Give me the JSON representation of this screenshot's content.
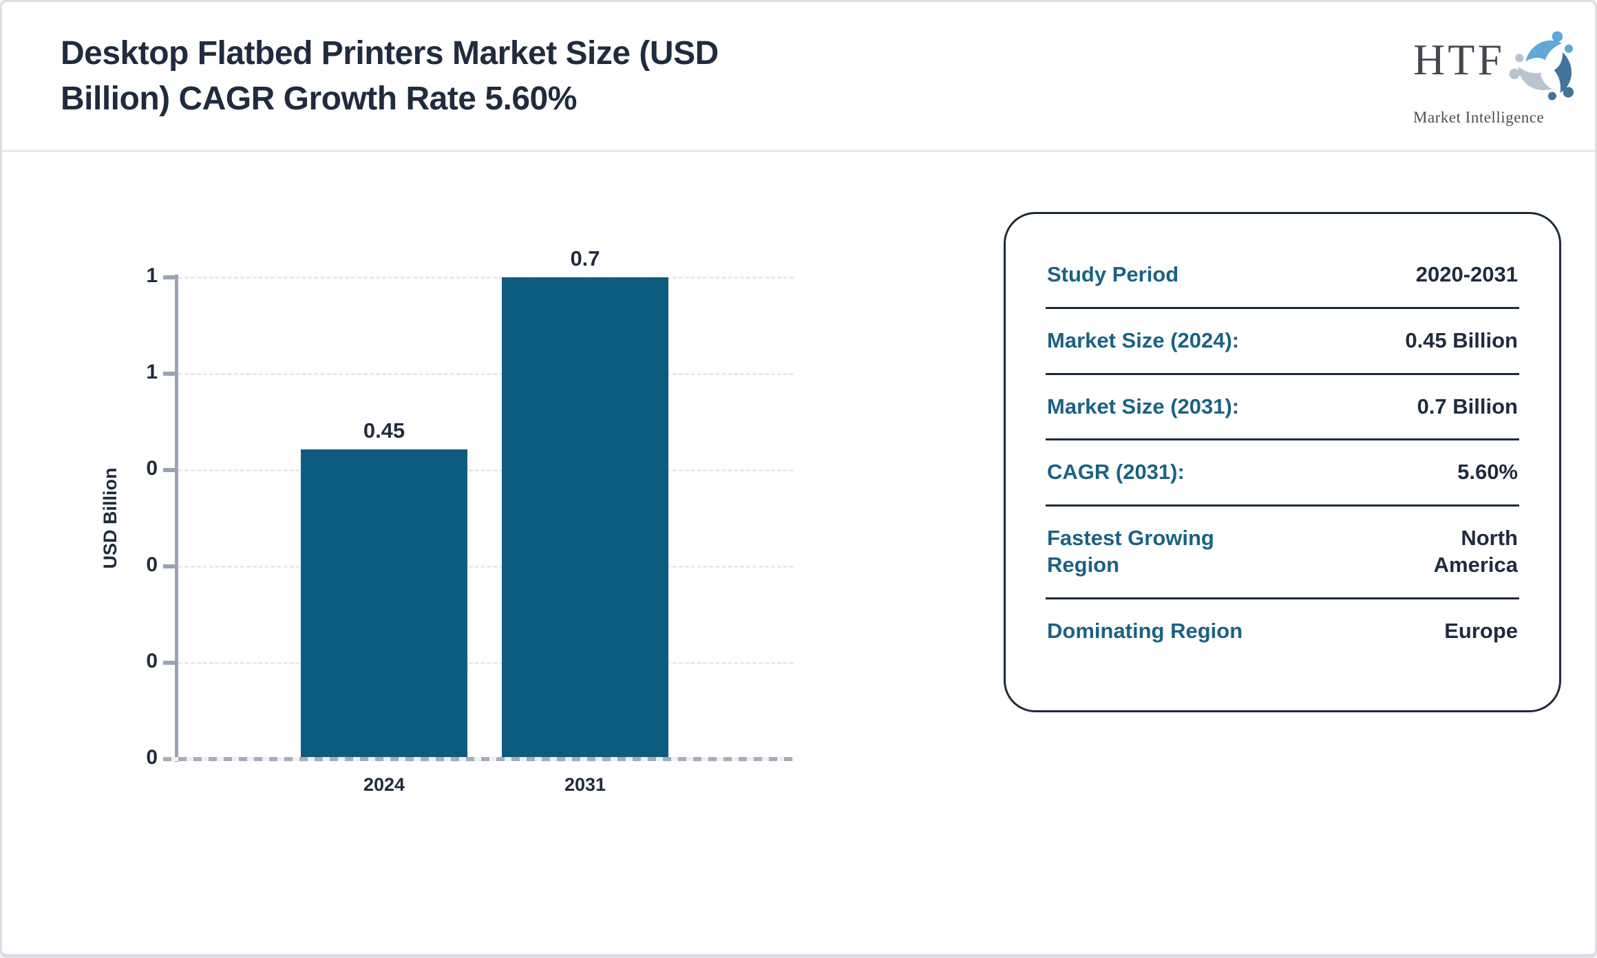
{
  "header": {
    "title_lines": [
      "Desktop Flatbed Printers Market Size (USD",
      "Billion) CAGR Growth Rate 5.60%"
    ],
    "title_full": "Desktop Flatbed Printers Market Size (USD Billion) CAGR Growth Rate 5.60%"
  },
  "logo": {
    "name": "HTF",
    "tagline": "Market Intelligence",
    "icon": "three-figures-swirl-icon",
    "icon_colors": [
      "#5fa8d8",
      "#b9c4d2",
      "#40749f"
    ]
  },
  "chart_data": {
    "type": "bar",
    "categories": [
      "2024",
      "2031"
    ],
    "values": [
      0.45,
      0.7
    ],
    "bar_value_labels": [
      "0.45",
      "0.7"
    ],
    "title": "",
    "xlabel": "",
    "ylabel": "USD Billion",
    "ylim": [
      0,
      0.7
    ],
    "ytick_labels_top_to_bottom": [
      "1",
      "1",
      "0",
      "0",
      "0",
      "0"
    ],
    "grid": "horizontal dashed",
    "legend": "none",
    "bar_color": "#0d5c80"
  },
  "panel": {
    "rows": [
      {
        "label": "Study Period",
        "value": "2020-2031"
      },
      {
        "label": "Market Size (2024):",
        "value": "0.45 Billion"
      },
      {
        "label": "Market Size (2031):",
        "value": "0.7 Billion"
      },
      {
        "label": "CAGR (2031):",
        "value": "5.60%"
      },
      {
        "label": "Fastest Growing Region",
        "value": "North America"
      },
      {
        "label": "Dominating Region",
        "value": "Europe"
      }
    ]
  },
  "colors": {
    "accent_teal": "#1a6285",
    "dark_text": "#1f2b3e",
    "bar": "#0d5c80",
    "axis_gray": "#9aa3b2",
    "gridline": "#e8e9ec",
    "panel_border": "#1c2a3a"
  }
}
